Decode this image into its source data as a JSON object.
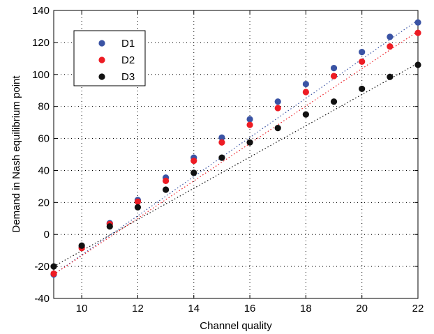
{
  "chart_data": {
    "type": "scatter",
    "title": "",
    "xlabel": "Channel quality",
    "ylabel": "Demand in Nash equilibrium point",
    "xlim": [
      9,
      22
    ],
    "ylim": [
      -40,
      140
    ],
    "xticks": [
      10,
      12,
      14,
      16,
      18,
      20,
      22
    ],
    "yticks": [
      -40,
      -20,
      0,
      20,
      40,
      60,
      80,
      100,
      120,
      140
    ],
    "grid": true,
    "legend_position": "top-left",
    "x": [
      9,
      10,
      11,
      12,
      13,
      14,
      15,
      16,
      17,
      18,
      19,
      20,
      21,
      22
    ],
    "series": [
      {
        "name": "D1",
        "color": "#3a53a4",
        "values": [
          -25,
          -8,
          7,
          21.5,
          35.5,
          48,
          60.5,
          72,
          83,
          94,
          104,
          114,
          123.5,
          132.5
        ]
      },
      {
        "name": "D2",
        "color": "#ed1c24",
        "values": [
          -24.5,
          -8.5,
          6.5,
          20.5,
          33.5,
          46,
          57.5,
          68.5,
          79,
          89,
          99,
          108,
          117.5,
          126
        ]
      },
      {
        "name": "D3",
        "color": "#111111",
        "values": [
          -20,
          -7,
          5,
          17,
          28,
          38.5,
          48,
          57.5,
          66.5,
          75,
          83,
          91,
          98.5,
          106
        ]
      }
    ],
    "fit_lines": [
      {
        "series": "D1",
        "color": "#3a53a4",
        "from": [
          9,
          -25
        ],
        "to": [
          22,
          134
        ]
      },
      {
        "series": "D2",
        "color": "#ed1c24",
        "from": [
          9,
          -25
        ],
        "to": [
          22,
          127
        ]
      },
      {
        "series": "D3",
        "color": "#111111",
        "from": [
          9,
          -20
        ],
        "to": [
          22,
          107
        ]
      }
    ]
  }
}
